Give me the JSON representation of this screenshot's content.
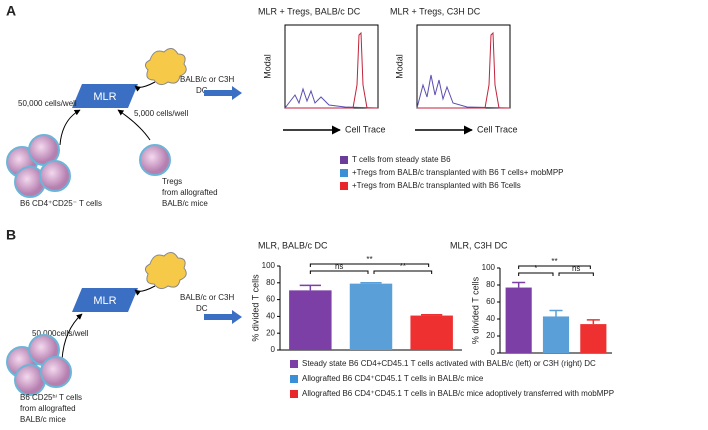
{
  "panel_a": {
    "label": "A",
    "diagram": {
      "mlr": "MLR",
      "dc": [
        "BALB/c or C3H",
        "DC"
      ],
      "cells_left": "50,000 cells/well",
      "cells_right": "5,000 cells/well",
      "tregs": [
        "Tregs",
        "from allografted",
        "BALB/c mice"
      ],
      "t_cells": "B6 CD4⁺CD25⁻ T cells"
    },
    "plots": [
      {
        "title": "MLR + Tregs, BALB/c DC",
        "ylabel": "Modal",
        "xlabel": "Cell Trace"
      },
      {
        "title": "MLR + Tregs, C3H DC",
        "ylabel": "Modal",
        "xlabel": "Cell Trace"
      }
    ],
    "legend": [
      {
        "name": "T cells from steady state B6",
        "color": "#6a3d9a"
      },
      {
        "name": "+Tregs from BALB/c transplanted with B6 T cells+ mobMPP",
        "color": "#3a8fd6"
      },
      {
        "name": "+Tregs from BALB/c transplanted with B6 Tcells",
        "color": "#e8262b"
      }
    ]
  },
  "panel_b": {
    "label": "B",
    "diagram": {
      "mlr": "MLR",
      "dc": [
        "BALB/c or C3H",
        "DC"
      ],
      "cells_left": "50,000cells/well",
      "t_cells": [
        "B6 CD25ʰⁱ T cells",
        "from allografted",
        "BALB/c mice"
      ]
    },
    "legend": [
      {
        "name": "Steady state B6 CD4+CD45.1 T cells activated with BALB/c (left) or C3H (right) DC",
        "color": "#7b3fa6"
      },
      {
        "name": "Allografted B6 CD4⁺CD45.1 T cells in BALB/c mice",
        "color": "#3a8fd6"
      },
      {
        "name": "Allografted B6 CD4⁺CD45.1 T cells in BALB/c mice adoptively transferred with mobMPP",
        "color": "#e8262b"
      }
    ]
  },
  "chart_data": [
    {
      "type": "bar",
      "title": "MLR, BALB/c DC",
      "ylabel": "% divided T cells",
      "categories": [
        null,
        null,
        null
      ],
      "values": [
        71,
        79,
        41
      ],
      "errors": [
        6,
        1,
        1
      ],
      "colors": [
        "#7b3fa6",
        "#5a9fd8",
        "#ee3030"
      ],
      "ylim": [
        0,
        100
      ],
      "yticks": [
        0,
        20,
        40,
        60,
        80,
        100
      ],
      "significance": [
        "ns",
        "**",
        "**"
      ]
    },
    {
      "type": "bar",
      "title": "MLR, C3H DC",
      "ylabel": "% divided T cells",
      "categories": [
        null,
        null,
        null
      ],
      "values": [
        77,
        43,
        34
      ],
      "errors": [
        6,
        7,
        5
      ],
      "colors": [
        "#7b3fa6",
        "#5a9fd8",
        "#ee3030"
      ],
      "ylim": [
        0,
        100
      ],
      "yticks": [
        0,
        20,
        40,
        60,
        80,
        100
      ],
      "significance": [
        "*",
        "**",
        "ns"
      ]
    }
  ]
}
